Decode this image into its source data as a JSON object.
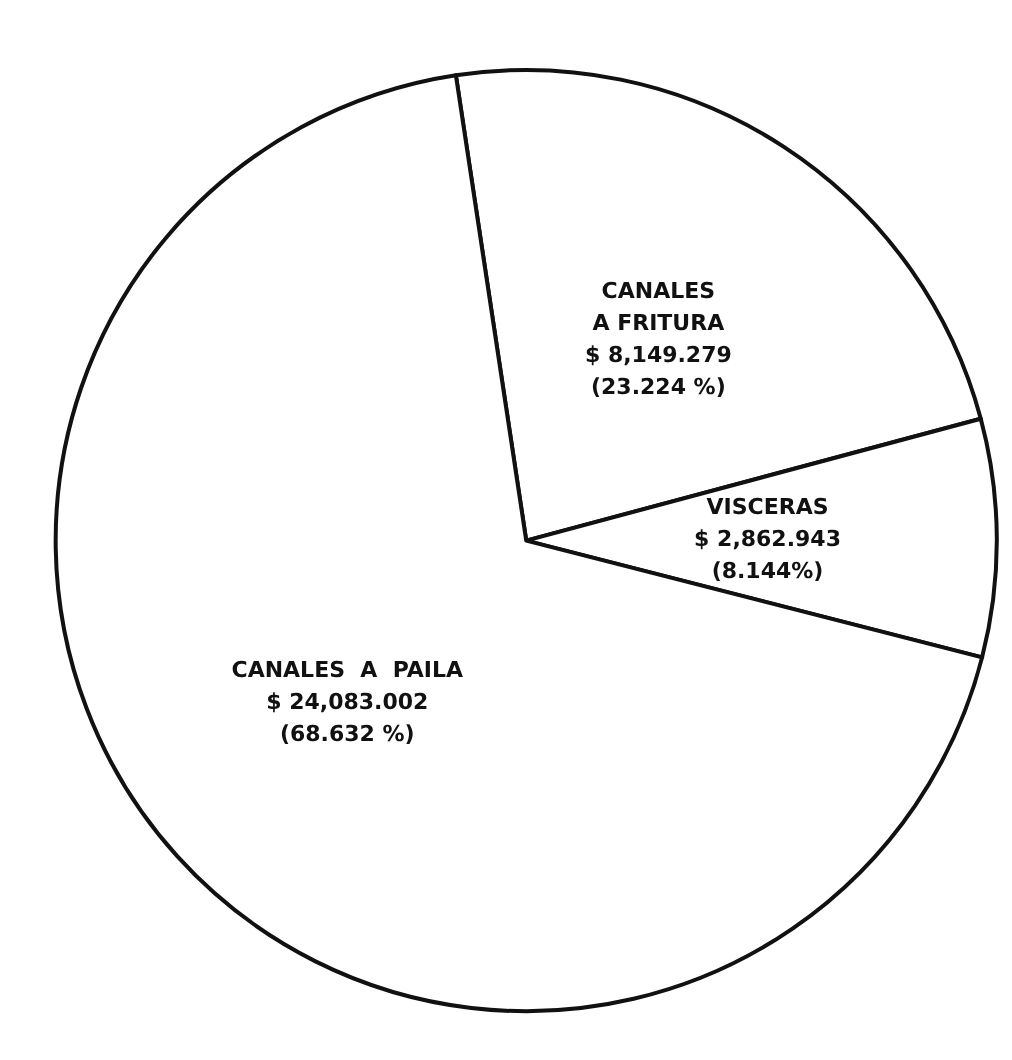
{
  "chart_data": {
    "type": "pie",
    "categories": [
      "CANALES\nA FRITURA",
      "VISCERAS",
      "CANALES  A  PAILA"
    ],
    "values": [
      8149.279,
      2862.943,
      24083.002
    ],
    "colors": [
      "#ffffff",
      "#ffffff",
      "#ffffff"
    ],
    "value_labels": [
      "$ 8,149.279\n(23.224 %)",
      "$ 2,862.943\n(8.144%)",
      "$ 24,083.002\n(68.632 %)"
    ],
    "legend": false
  }
}
